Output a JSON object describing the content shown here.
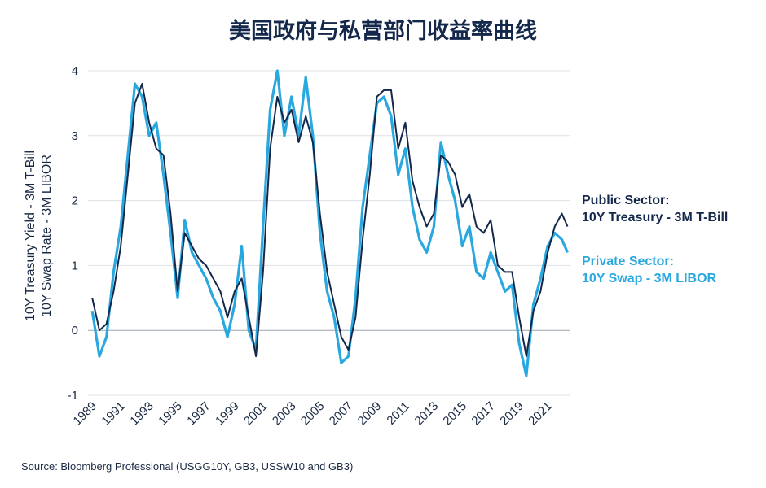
{
  "chart_data": {
    "type": "line",
    "title": "美国政府与私营部门收益率曲线",
    "ylabel_lines": [
      "10Y Treasury Yield - 3M T-Bill",
      "10Y Swap Rate - 3M LIBOR"
    ],
    "xlabel": "",
    "ylim": [
      -1,
      4
    ],
    "xlim": [
      1988.7,
      2022.6
    ],
    "yticks": [
      -1,
      0,
      1,
      2,
      3,
      4
    ],
    "xticks": [
      1989,
      1991,
      1993,
      1995,
      1997,
      1999,
      2001,
      2003,
      2005,
      2007,
      2009,
      2011,
      2013,
      2015,
      2017,
      2019,
      2021
    ],
    "grid": "horizontal",
    "legend_position": "right",
    "series": [
      {
        "name": "Public Sector: 10Y Treasury - 3M T-Bill",
        "legend_lines": [
          "Public Sector:",
          "10Y Treasury - 3M T-Bill"
        ],
        "color": "#13284a",
        "x": [
          1989.0,
          1989.5,
          1990.0,
          1990.5,
          1991.0,
          1991.5,
          1992.0,
          1992.5,
          1993.0,
          1993.5,
          1994.0,
          1994.5,
          1995.0,
          1995.5,
          1996.0,
          1996.5,
          1997.0,
          1997.5,
          1998.0,
          1998.5,
          1999.0,
          1999.5,
          2000.0,
          2000.5,
          2001.0,
          2001.5,
          2002.0,
          2002.5,
          2003.0,
          2003.5,
          2004.0,
          2004.5,
          2005.0,
          2005.5,
          2006.0,
          2006.5,
          2007.0,
          2007.5,
          2008.0,
          2008.5,
          2009.0,
          2009.5,
          2010.0,
          2010.5,
          2011.0,
          2011.5,
          2012.0,
          2012.5,
          2013.0,
          2013.5,
          2014.0,
          2014.5,
          2015.0,
          2015.5,
          2016.0,
          2016.5,
          2017.0,
          2017.5,
          2018.0,
          2018.5,
          2019.0,
          2019.5,
          2020.0,
          2020.5,
          2021.0,
          2021.5,
          2022.0,
          2022.4
        ],
        "values": [
          0.5,
          0.0,
          0.1,
          0.6,
          1.3,
          2.4,
          3.5,
          3.8,
          3.2,
          2.8,
          2.7,
          1.8,
          0.6,
          1.5,
          1.3,
          1.1,
          1.0,
          0.8,
          0.6,
          0.2,
          0.6,
          0.8,
          0.2,
          -0.4,
          0.9,
          2.8,
          3.6,
          3.2,
          3.4,
          2.9,
          3.3,
          2.9,
          1.8,
          0.9,
          0.4,
          -0.1,
          -0.3,
          0.2,
          1.4,
          2.4,
          3.6,
          3.7,
          3.7,
          2.8,
          3.2,
          2.3,
          1.9,
          1.6,
          1.8,
          2.7,
          2.6,
          2.4,
          1.9,
          2.1,
          1.6,
          1.5,
          1.7,
          1.0,
          0.9,
          0.9,
          0.2,
          -0.4,
          0.3,
          0.6,
          1.2,
          1.6,
          1.8,
          1.6
        ]
      },
      {
        "name": "Private Sector: 10Y Swap - 3M LIBOR",
        "legend_lines": [
          "Private Sector:",
          "10Y Swap - 3M LIBOR"
        ],
        "color": "#29a8e0",
        "x": [
          1989.0,
          1989.5,
          1990.0,
          1990.5,
          1991.0,
          1991.5,
          1992.0,
          1992.5,
          1993.0,
          1993.5,
          1994.0,
          1994.5,
          1995.0,
          1995.5,
          1996.0,
          1996.5,
          1997.0,
          1997.5,
          1998.0,
          1998.5,
          1999.0,
          1999.5,
          2000.0,
          2000.5,
          2001.0,
          2001.5,
          2002.0,
          2002.5,
          2003.0,
          2003.5,
          2004.0,
          2004.5,
          2005.0,
          2005.5,
          2006.0,
          2006.5,
          2007.0,
          2007.5,
          2008.0,
          2008.5,
          2009.0,
          2009.5,
          2010.0,
          2010.5,
          2011.0,
          2011.5,
          2012.0,
          2012.5,
          2013.0,
          2013.5,
          2014.0,
          2014.5,
          2015.0,
          2015.5,
          2016.0,
          2016.5,
          2017.0,
          2017.5,
          2018.0,
          2018.5,
          2019.0,
          2019.5,
          2020.0,
          2020.5,
          2021.0,
          2021.5,
          2022.0,
          2022.4
        ],
        "values": [
          0.3,
          -0.4,
          -0.1,
          0.9,
          1.6,
          2.7,
          3.8,
          3.6,
          3.0,
          3.2,
          2.4,
          1.5,
          0.5,
          1.7,
          1.2,
          1.0,
          0.8,
          0.5,
          0.3,
          -0.1,
          0.4,
          1.3,
          0.0,
          -0.3,
          1.6,
          3.4,
          4.0,
          3.0,
          3.6,
          3.0,
          3.9,
          3.0,
          1.5,
          0.6,
          0.2,
          -0.5,
          -0.4,
          0.5,
          1.9,
          2.7,
          3.5,
          3.6,
          3.3,
          2.4,
          2.8,
          1.9,
          1.4,
          1.2,
          1.6,
          2.9,
          2.4,
          2.0,
          1.3,
          1.6,
          0.9,
          0.8,
          1.2,
          0.9,
          0.6,
          0.7,
          -0.2,
          -0.7,
          0.4,
          0.8,
          1.3,
          1.5,
          1.4,
          1.2
        ]
      }
    ]
  },
  "source": "Source: Bloomberg Professional (USGG10Y, GB3, USSW10 and GB3)"
}
